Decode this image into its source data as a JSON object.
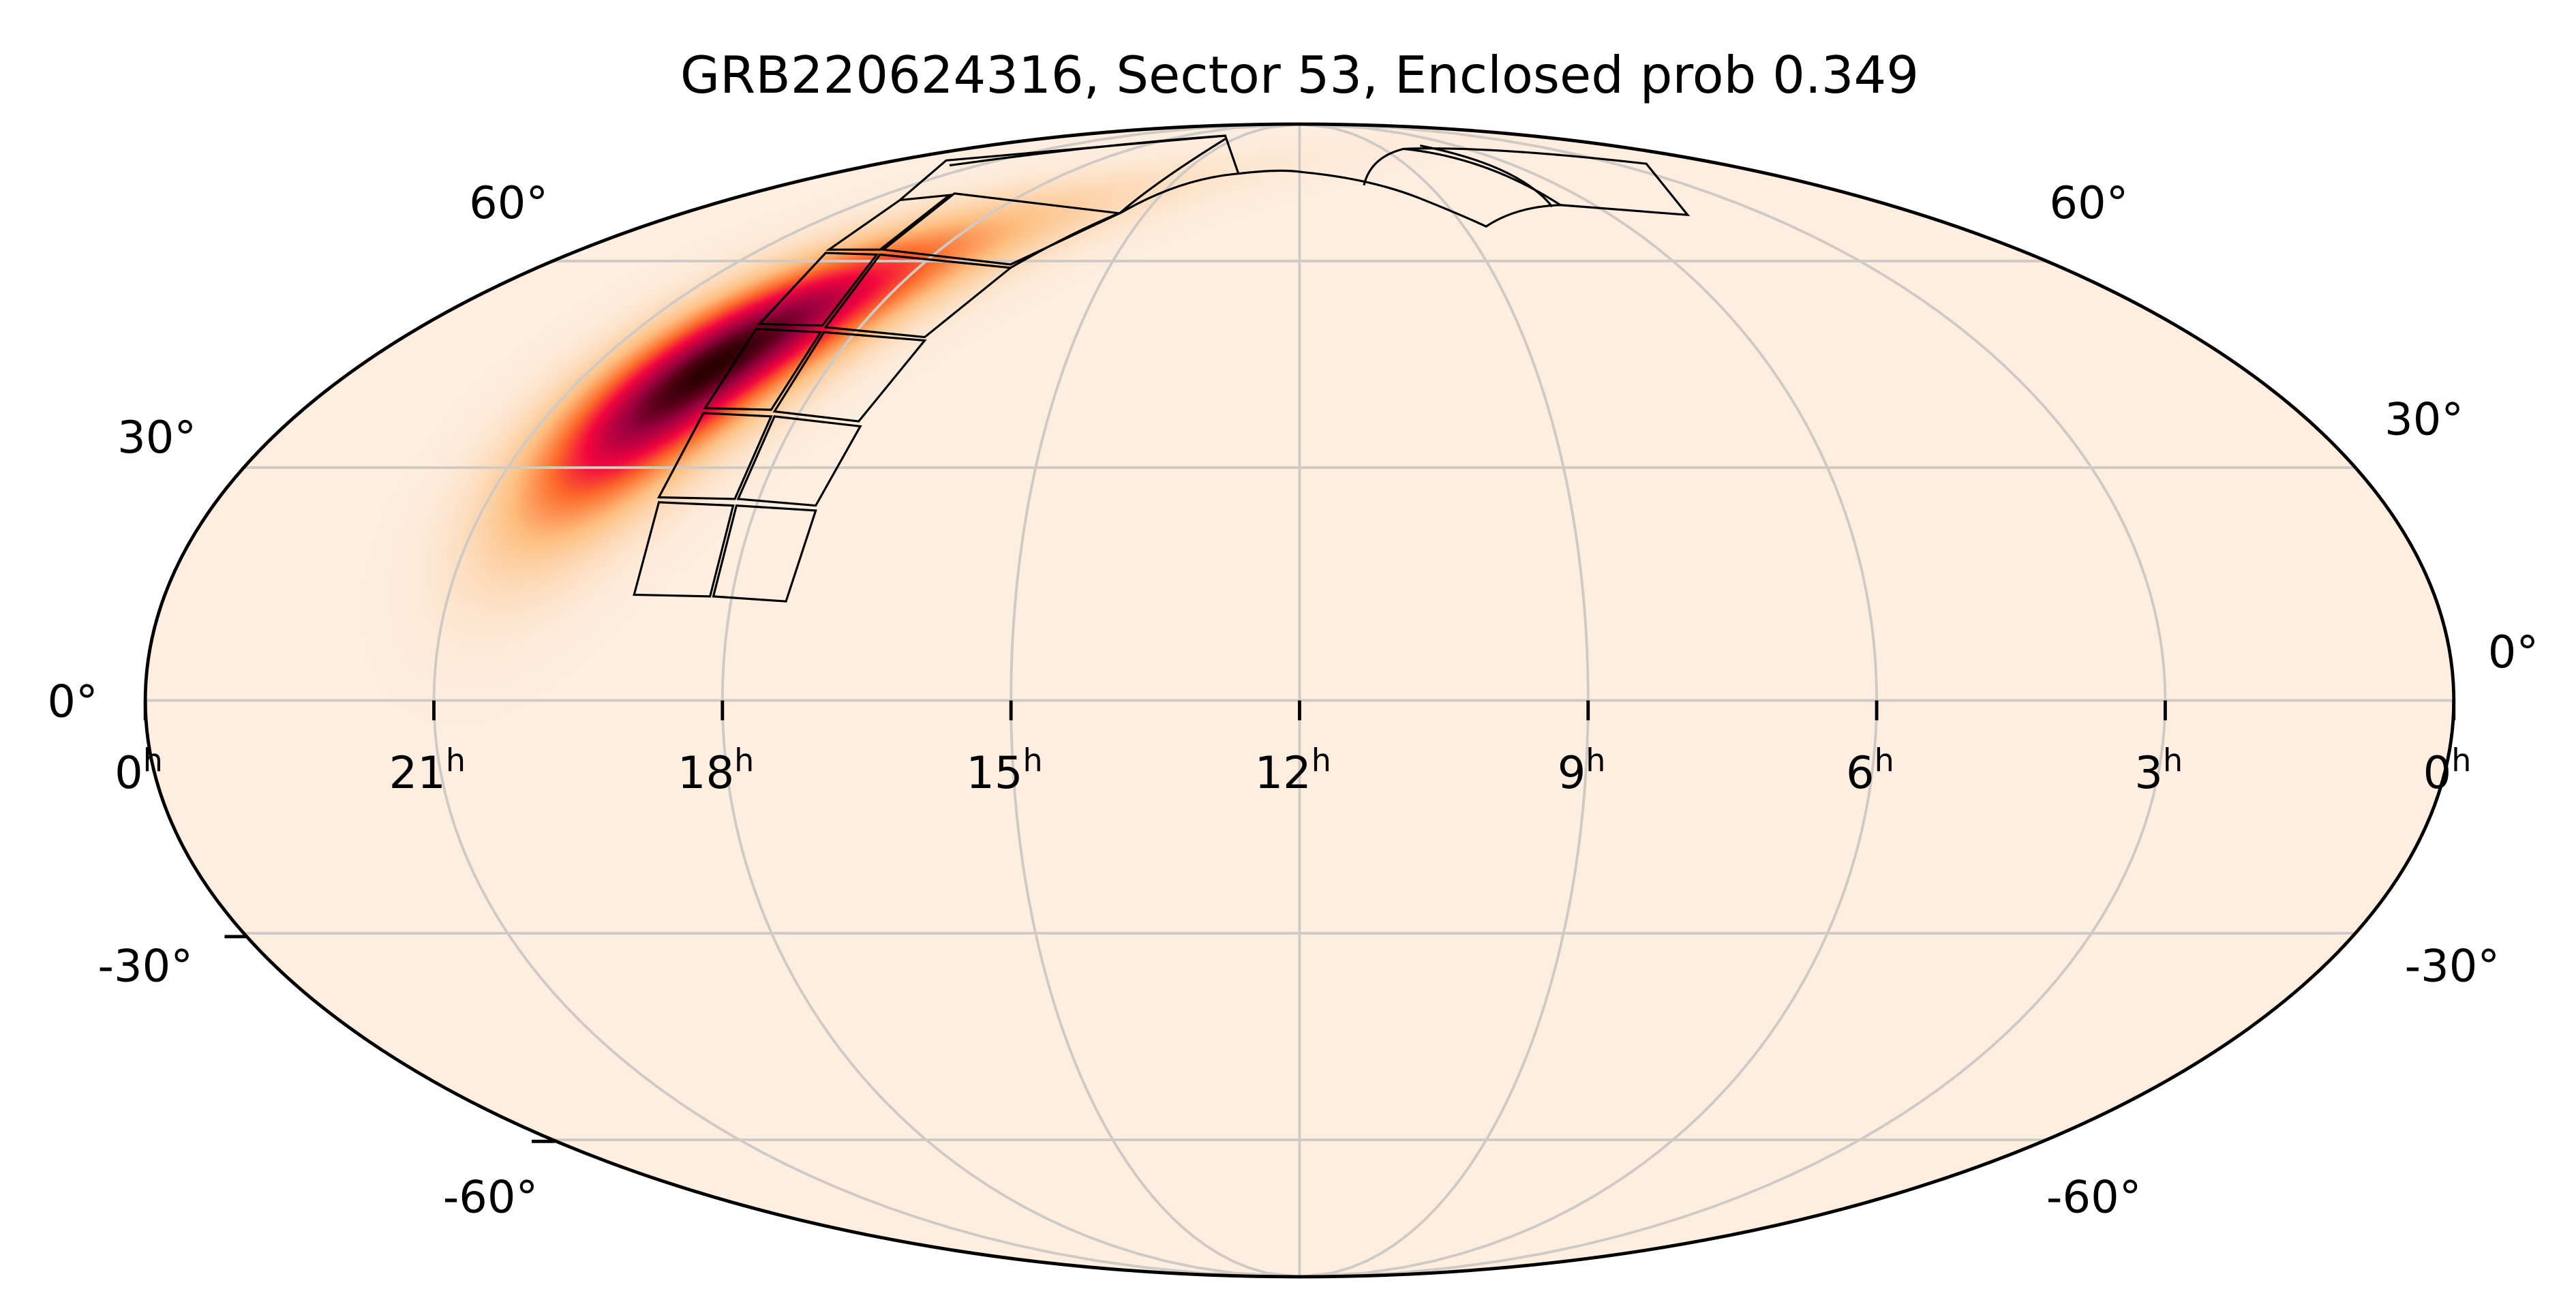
{
  "chart_data": {
    "type": "heatmap",
    "projection": "mollweide",
    "title": "GRB220624316, Sector 53, Enclosed prob 0.349",
    "xlabel": "",
    "ylabel": "",
    "x_ticks": [
      {
        "label": "0",
        "unit": "h",
        "ra_hours": 24
      },
      {
        "label": "21",
        "unit": "h",
        "ra_hours": 21
      },
      {
        "label": "18",
        "unit": "h",
        "ra_hours": 18
      },
      {
        "label": "15",
        "unit": "h",
        "ra_hours": 15
      },
      {
        "label": "12",
        "unit": "h",
        "ra_hours": 12
      },
      {
        "label": "9",
        "unit": "h",
        "ra_hours": 9
      },
      {
        "label": "6",
        "unit": "h",
        "ra_hours": 6
      },
      {
        "label": "3",
        "unit": "h",
        "ra_hours": 3
      },
      {
        "label": "0",
        "unit": "h",
        "ra_hours": 0
      }
    ],
    "y_ticks_left": [
      "60°",
      "30°",
      "0°",
      "-30°",
      "-60°"
    ],
    "y_ticks_right": [
      "60°",
      "30°",
      "0°",
      "-30°",
      "-60°"
    ],
    "dec_grid_degrees": [
      -60,
      -30,
      0,
      30,
      60
    ],
    "ra_grid_hours": [
      3,
      6,
      9,
      12,
      15,
      18,
      21
    ],
    "grid": true,
    "probability_peak": {
      "ra_hours": 19.5,
      "dec_deg": 44
    },
    "colors": {
      "low": "#fdeee0",
      "mid_low": "#fdbf80",
      "mid": "#fc6a2a",
      "high": "#f2053f",
      "very_high": "#9c0040",
      "peak": "#2a0000",
      "grid": "#cfcac6",
      "footprint": "#000000"
    }
  }
}
